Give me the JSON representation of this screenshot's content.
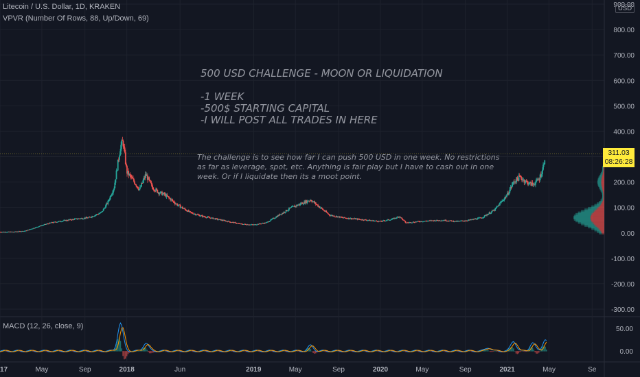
{
  "header": {
    "symbol_line": "Litecoin / U.S. Dollar, 1D, KRAKEN",
    "vpvr_line": "VPVR (Number Of Rows, 88, Up/Down, 69)",
    "macd_line": "MACD (12, 26, close, 9)"
  },
  "currency_badge": "USD",
  "notes": {
    "headline": "500 USD CHALLENGE - MOON OR LIQUIDATION",
    "bullet1": "-1 WEEK",
    "bullet2": "-500$ STARTING CAPITAL",
    "bullet3": "-I WILL POST ALL TRADES IN HERE",
    "para1": "The challenge is to see how far I can push 500 USD in one week. No restrictions",
    "para2": "as far as leverage, spot, etc. Anything is fair play but I have to cash out in one",
    "para3": "week. Or if I liquidate then its a moot point."
  },
  "last_price": {
    "value": "311.03",
    "countdown": "08:26:28"
  },
  "colors": {
    "up": "#26a69a",
    "down": "#ef5350",
    "macd": "#2196f3",
    "signal": "#ff9800",
    "tag": "#ffeb3b"
  },
  "chart_data": {
    "type": "line",
    "title": "Litecoin / U.S. Dollar, 1D, KRAKEN",
    "y_ticks": [
      "900.00",
      "800.00",
      "700.00",
      "600.00",
      "500.00",
      "400.00",
      "300.00",
      "200.00",
      "100.00",
      "0.00",
      "-100.00",
      "-200.00",
      "-300.00"
    ],
    "ylim": [
      -300,
      900
    ],
    "x_ticks": [
      "2017",
      "May",
      "Sep",
      "2018",
      "Jun",
      "2019",
      "May",
      "Sep",
      "2020",
      "May",
      "Sep",
      "2021",
      "May",
      "Se"
    ],
    "x_tick_dates": [
      2017.0,
      2017.33,
      2017.67,
      2018.0,
      2018.42,
      2019.0,
      2019.33,
      2019.67,
      2020.0,
      2020.33,
      2020.67,
      2021.0,
      2021.33,
      2021.67
    ],
    "xlim": [
      2017.0,
      2021.69
    ],
    "series": [
      {
        "x": [
          2017.0,
          2017.1,
          2017.2,
          2017.3,
          2017.4,
          2017.5,
          2017.6,
          2017.7,
          2017.8,
          2017.85,
          2017.9,
          2017.95,
          2017.97,
          2018.0,
          2018.03,
          2018.06,
          2018.1,
          2018.15,
          2018.2,
          2018.25,
          2018.3,
          2018.4,
          2018.5,
          2018.6,
          2018.7,
          2018.8,
          2018.9,
          2019.0,
          2019.1,
          2019.2,
          2019.3,
          2019.4,
          2019.45,
          2019.5,
          2019.55,
          2019.6,
          2019.7,
          2019.8,
          2019.9,
          2020.0,
          2020.1,
          2020.15,
          2020.2,
          2020.25,
          2020.3,
          2020.4,
          2020.5,
          2020.6,
          2020.7,
          2020.8,
          2020.9,
          2021.0,
          2021.05,
          2021.1,
          2021.15,
          2021.2,
          2021.25,
          2021.28,
          2021.3
        ],
        "values": [
          4,
          4,
          8,
          25,
          40,
          48,
          55,
          60,
          80,
          120,
          180,
          340,
          360,
          240,
          220,
          200,
          170,
          230,
          180,
          160,
          150,
          110,
          80,
          65,
          55,
          45,
          35,
          32,
          40,
          70,
          100,
          120,
          130,
          110,
          90,
          70,
          60,
          55,
          50,
          45,
          55,
          65,
          40,
          42,
          45,
          48,
          50,
          45,
          50,
          60,
          90,
          150,
          200,
          220,
          200,
          190,
          210,
          250,
          311
        ]
      }
    ],
    "annotation_last": "311.03",
    "macd": {
      "title": "MACD (12, 26, close, 9)",
      "y_ticks": [
        "50.00",
        "0.00"
      ],
      "ylim": [
        -15,
        70
      ]
    }
  }
}
